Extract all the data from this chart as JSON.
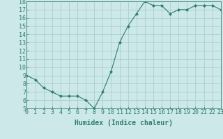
{
  "x": [
    0,
    1,
    2,
    3,
    4,
    5,
    6,
    7,
    8,
    9,
    10,
    11,
    12,
    13,
    14,
    15,
    16,
    17,
    18,
    19,
    20,
    21,
    22,
    23
  ],
  "y": [
    9,
    8.5,
    7.5,
    7,
    6.5,
    6.5,
    6.5,
    6,
    5,
    7,
    9.5,
    13,
    15,
    16.5,
    18,
    17.5,
    17.5,
    16.5,
    17,
    17,
    17.5,
    17.5,
    17.5,
    17
  ],
  "line_color": "#2e7d6e",
  "marker": "D",
  "marker_size": 2,
  "bg_color": "#cce8e8",
  "grid_color": "#aacece",
  "xlabel": "Humidex (Indice chaleur)",
  "ylim": [
    5,
    18
  ],
  "xlim": [
    0,
    23
  ],
  "yticks": [
    5,
    6,
    7,
    8,
    9,
    10,
    11,
    12,
    13,
    14,
    15,
    16,
    17,
    18
  ],
  "xticks": [
    0,
    1,
    2,
    3,
    4,
    5,
    6,
    7,
    8,
    9,
    10,
    11,
    12,
    13,
    14,
    15,
    16,
    17,
    18,
    19,
    20,
    21,
    22,
    23
  ],
  "tick_color": "#2e7d6e",
  "axis_color": "#2e7d6e",
  "label_fontsize": 7,
  "tick_fontsize": 6
}
